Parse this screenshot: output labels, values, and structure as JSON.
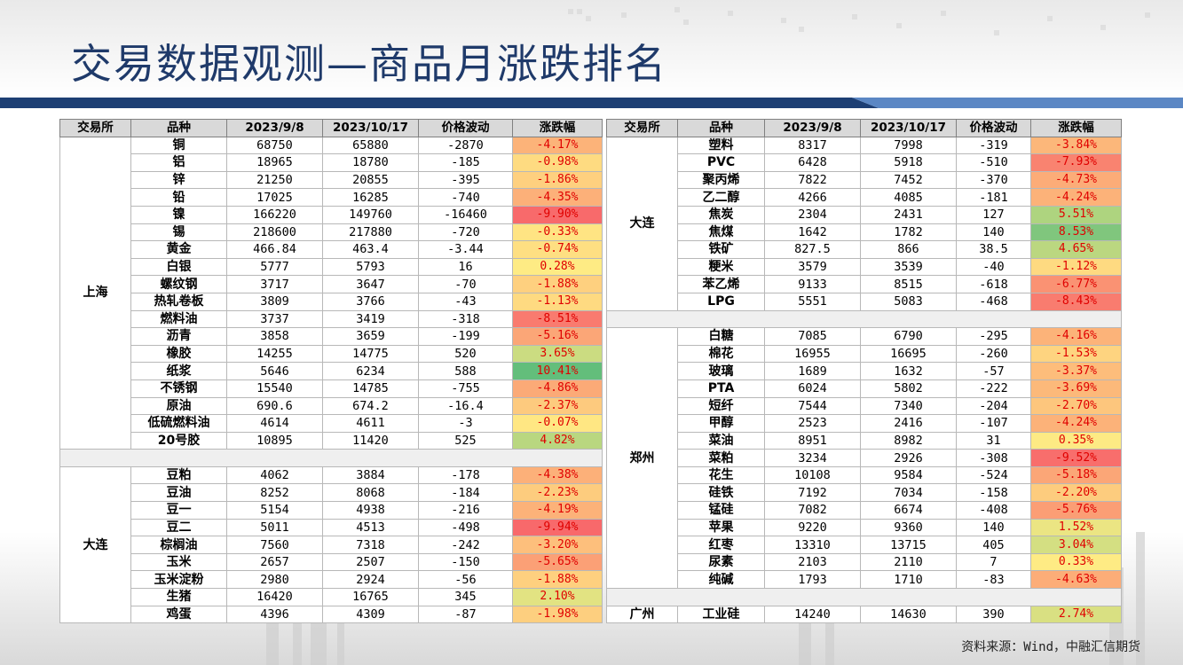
{
  "title": "交易数据观测—商品月涨跌排名",
  "source": "资料来源：Wind，中融汇信期货",
  "headers": [
    "交易所",
    "品种",
    "2023/9/8",
    "2023/10/17",
    "价格波动",
    "涨跌幅"
  ],
  "left_groups": [
    {
      "exchange": "上海",
      "rows": [
        {
          "name": "铜",
          "p1": "68750",
          "p2": "65880",
          "chg": "-2870",
          "pct": "-4.17%",
          "val": -4.17
        },
        {
          "name": "铝",
          "p1": "18965",
          "p2": "18780",
          "chg": "-185",
          "pct": "-0.98%",
          "val": -0.98
        },
        {
          "name": "锌",
          "p1": "21250",
          "p2": "20855",
          "chg": "-395",
          "pct": "-1.86%",
          "val": -1.86
        },
        {
          "name": "铅",
          "p1": "17025",
          "p2": "16285",
          "chg": "-740",
          "pct": "-4.35%",
          "val": -4.35
        },
        {
          "name": "镍",
          "p1": "166220",
          "p2": "149760",
          "chg": "-16460",
          "pct": "-9.90%",
          "val": -9.9
        },
        {
          "name": "锡",
          "p1": "218600",
          "p2": "217880",
          "chg": "-720",
          "pct": "-0.33%",
          "val": -0.33
        },
        {
          "name": "黄金",
          "p1": "466.84",
          "p2": "463.4",
          "chg": "-3.44",
          "pct": "-0.74%",
          "val": -0.74
        },
        {
          "name": "白银",
          "p1": "5777",
          "p2": "5793",
          "chg": "16",
          "pct": "0.28%",
          "val": 0.28
        },
        {
          "name": "螺纹钢",
          "p1": "3717",
          "p2": "3647",
          "chg": "-70",
          "pct": "-1.88%",
          "val": -1.88
        },
        {
          "name": "热轧卷板",
          "p1": "3809",
          "p2": "3766",
          "chg": "-43",
          "pct": "-1.13%",
          "val": -1.13
        },
        {
          "name": "燃料油",
          "p1": "3737",
          "p2": "3419",
          "chg": "-318",
          "pct": "-8.51%",
          "val": -8.51
        },
        {
          "name": "沥青",
          "p1": "3858",
          "p2": "3659",
          "chg": "-199",
          "pct": "-5.16%",
          "val": -5.16
        },
        {
          "name": "橡胶",
          "p1": "14255",
          "p2": "14775",
          "chg": "520",
          "pct": "3.65%",
          "val": 3.65
        },
        {
          "name": "纸浆",
          "p1": "5646",
          "p2": "6234",
          "chg": "588",
          "pct": "10.41%",
          "val": 10.41
        },
        {
          "name": "不锈钢",
          "p1": "15540",
          "p2": "14785",
          "chg": "-755",
          "pct": "-4.86%",
          "val": -4.86
        },
        {
          "name": "原油",
          "p1": "690.6",
          "p2": "674.2",
          "chg": "-16.4",
          "pct": "-2.37%",
          "val": -2.37
        },
        {
          "name": "低硫燃料油",
          "p1": "4614",
          "p2": "4611",
          "chg": "-3",
          "pct": "-0.07%",
          "val": -0.07
        },
        {
          "name": "20号胶",
          "p1": "10895",
          "p2": "11420",
          "chg": "525",
          "pct": "4.82%",
          "val": 4.82
        }
      ]
    },
    {
      "exchange": "大连",
      "rows": [
        {
          "name": "豆粕",
          "p1": "4062",
          "p2": "3884",
          "chg": "-178",
          "pct": "-4.38%",
          "val": -4.38
        },
        {
          "name": "豆油",
          "p1": "8252",
          "p2": "8068",
          "chg": "-184",
          "pct": "-2.23%",
          "val": -2.23
        },
        {
          "name": "豆一",
          "p1": "5154",
          "p2": "4938",
          "chg": "-216",
          "pct": "-4.19%",
          "val": -4.19
        },
        {
          "name": "豆二",
          "p1": "5011",
          "p2": "4513",
          "chg": "-498",
          "pct": "-9.94%",
          "val": -9.94
        },
        {
          "name": "棕榈油",
          "p1": "7560",
          "p2": "7318",
          "chg": "-242",
          "pct": "-3.20%",
          "val": -3.2
        },
        {
          "name": "玉米",
          "p1": "2657",
          "p2": "2507",
          "chg": "-150",
          "pct": "-5.65%",
          "val": -5.65
        },
        {
          "name": "玉米淀粉",
          "p1": "2980",
          "p2": "2924",
          "chg": "-56",
          "pct": "-1.88%",
          "val": -1.88
        },
        {
          "name": "生猪",
          "p1": "16420",
          "p2": "16765",
          "chg": "345",
          "pct": "2.10%",
          "val": 2.1
        },
        {
          "name": "鸡蛋",
          "p1": "4396",
          "p2": "4309",
          "chg": "-87",
          "pct": "-1.98%",
          "val": -1.98
        }
      ]
    }
  ],
  "right_groups": [
    {
      "exchange": "大连",
      "rows": [
        {
          "name": "塑料",
          "p1": "8317",
          "p2": "7998",
          "chg": "-319",
          "pct": "-3.84%",
          "val": -3.84
        },
        {
          "name": "PVC",
          "p1": "6428",
          "p2": "5918",
          "chg": "-510",
          "pct": "-7.93%",
          "val": -7.93
        },
        {
          "name": "聚丙烯",
          "p1": "7822",
          "p2": "7452",
          "chg": "-370",
          "pct": "-4.73%",
          "val": -4.73
        },
        {
          "name": "乙二醇",
          "p1": "4266",
          "p2": "4085",
          "chg": "-181",
          "pct": "-4.24%",
          "val": -4.24
        },
        {
          "name": "焦炭",
          "p1": "2304",
          "p2": "2431",
          "chg": "127",
          "pct": "5.51%",
          "val": 5.51
        },
        {
          "name": "焦煤",
          "p1": "1642",
          "p2": "1782",
          "chg": "140",
          "pct": "8.53%",
          "val": 8.53
        },
        {
          "name": "铁矿",
          "p1": "827.5",
          "p2": "866",
          "chg": "38.5",
          "pct": "4.65%",
          "val": 4.65
        },
        {
          "name": "粳米",
          "p1": "3579",
          "p2": "3539",
          "chg": "-40",
          "pct": "-1.12%",
          "val": -1.12
        },
        {
          "name": "苯乙烯",
          "p1": "9133",
          "p2": "8515",
          "chg": "-618",
          "pct": "-6.77%",
          "val": -6.77
        },
        {
          "name": "LPG",
          "p1": "5551",
          "p2": "5083",
          "chg": "-468",
          "pct": "-8.43%",
          "val": -8.43
        }
      ]
    },
    {
      "exchange": "郑州",
      "rows": [
        {
          "name": "白糖",
          "p1": "7085",
          "p2": "6790",
          "chg": "-295",
          "pct": "-4.16%",
          "val": -4.16
        },
        {
          "name": "棉花",
          "p1": "16955",
          "p2": "16695",
          "chg": "-260",
          "pct": "-1.53%",
          "val": -1.53
        },
        {
          "name": "玻璃",
          "p1": "1689",
          "p2": "1632",
          "chg": "-57",
          "pct": "-3.37%",
          "val": -3.37
        },
        {
          "name": "PTA",
          "p1": "6024",
          "p2": "5802",
          "chg": "-222",
          "pct": "-3.69%",
          "val": -3.69
        },
        {
          "name": "短纤",
          "p1": "7544",
          "p2": "7340",
          "chg": "-204",
          "pct": "-2.70%",
          "val": -2.7
        },
        {
          "name": "甲醇",
          "p1": "2523",
          "p2": "2416",
          "chg": "-107",
          "pct": "-4.24%",
          "val": -4.24
        },
        {
          "name": "菜油",
          "p1": "8951",
          "p2": "8982",
          "chg": "31",
          "pct": "0.35%",
          "val": 0.35
        },
        {
          "name": "菜粕",
          "p1": "3234",
          "p2": "2926",
          "chg": "-308",
          "pct": "-9.52%",
          "val": -9.52
        },
        {
          "name": "花生",
          "p1": "10108",
          "p2": "9584",
          "chg": "-524",
          "pct": "-5.18%",
          "val": -5.18
        },
        {
          "name": "硅铁",
          "p1": "7192",
          "p2": "7034",
          "chg": "-158",
          "pct": "-2.20%",
          "val": -2.2
        },
        {
          "name": "锰硅",
          "p1": "7082",
          "p2": "6674",
          "chg": "-408",
          "pct": "-5.76%",
          "val": -5.76
        },
        {
          "name": "苹果",
          "p1": "9220",
          "p2": "9360",
          "chg": "140",
          "pct": "1.52%",
          "val": 1.52
        },
        {
          "name": "红枣",
          "p1": "13310",
          "p2": "13715",
          "chg": "405",
          "pct": "3.04%",
          "val": 3.04
        },
        {
          "name": "尿素",
          "p1": "2103",
          "p2": "2110",
          "chg": "7",
          "pct": "0.33%",
          "val": 0.33
        },
        {
          "name": "纯碱",
          "p1": "1793",
          "p2": "1710",
          "chg": "-83",
          "pct": "-4.63%",
          "val": -4.63
        }
      ]
    },
    {
      "exchange": "广州",
      "rows": [
        {
          "name": "工业硅",
          "p1": "14240",
          "p2": "14630",
          "chg": "390",
          "pct": "2.74%",
          "val": 2.74
        }
      ]
    }
  ],
  "colors": {
    "title": "#1f3a6a",
    "band_dark": "#1d3f74",
    "band_light": "#5b87c4",
    "pct_text": "#e00000",
    "scale_min": "#f8696b",
    "scale_mid": "#ffeb84",
    "scale_max": "#63be7b"
  }
}
